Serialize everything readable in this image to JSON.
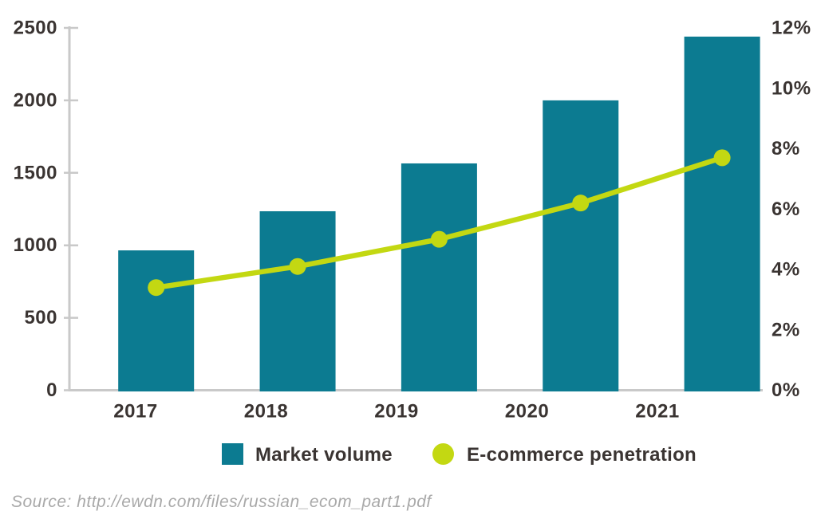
{
  "chart_data": {
    "type": "combo-bar-line",
    "categories": [
      "2017",
      "2018",
      "2019",
      "2020",
      "2021"
    ],
    "series": [
      {
        "name": "Market volume",
        "type": "bar",
        "axis": "left",
        "color": "#0c7b91",
        "values": [
          965,
          1235,
          1565,
          2000,
          2440
        ]
      },
      {
        "name": "E-commerce penetration",
        "type": "line",
        "axis": "right",
        "color": "#c3d812",
        "values": [
          3.4,
          4.1,
          5.0,
          6.2,
          7.7
        ]
      }
    ],
    "left_axis": {
      "min": 0,
      "max": 2500,
      "ticks": [
        0,
        500,
        1000,
        1500,
        2000,
        2500
      ],
      "suffix": ""
    },
    "right_axis": {
      "min": 0,
      "max": 12,
      "ticks": [
        0,
        2,
        4,
        6,
        8,
        10,
        12
      ],
      "suffix": "%"
    },
    "grid": false,
    "legend_position": "bottom"
  },
  "legend": {
    "items": [
      {
        "label": "Market volume",
        "swatch": "square",
        "color": "#0c7b91"
      },
      {
        "label": "E-commerce penetration",
        "swatch": "circle",
        "color": "#c3d812"
      }
    ]
  },
  "source": {
    "text": "Source: http://ewdn.com/files/russian_ecom_part1.pdf"
  },
  "colors": {
    "bar": "#0c7b91",
    "line": "#c3d812",
    "axis": "#c9c9c9",
    "text": "#3a3432",
    "source_text": "#a9a9a9"
  }
}
